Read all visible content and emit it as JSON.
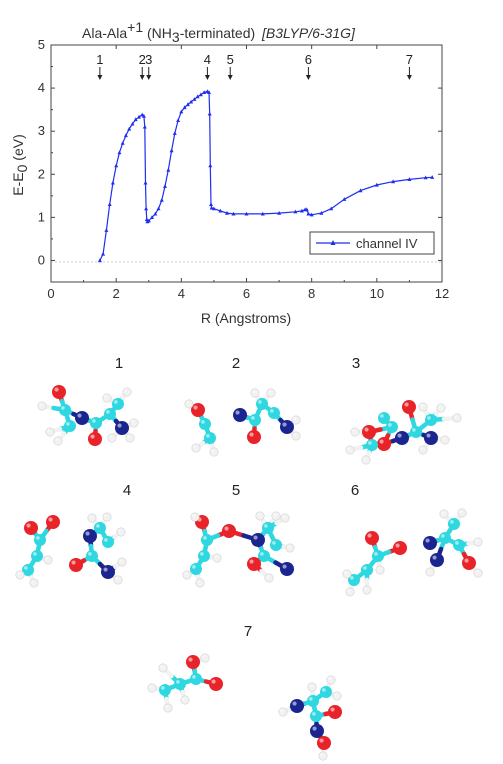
{
  "chart_data": {
    "type": "line",
    "title": "Ala-Ala+1 (NH3-terminated)",
    "title_parts": {
      "base": "Ala-Ala",
      "sup": "+1",
      "mid1": " (NH",
      "sub": "3",
      "mid2": "-terminated)",
      "method": "[B3LYP/6-31G]"
    },
    "xlabel": "R (Angstroms)",
    "ylabel": "E-E0 (eV)",
    "ylabel_parts": {
      "base": "E-E",
      "sub": "0",
      "unit": " (eV)"
    },
    "xlim": [
      0,
      12
    ],
    "ylim": [
      -0.5,
      5
    ],
    "xticks": [
      0,
      2,
      4,
      6,
      8,
      10,
      12
    ],
    "yticks": [
      0,
      1,
      2,
      3,
      4,
      5
    ],
    "legend": {
      "label": "channel IV",
      "placement": "bottom-right"
    },
    "series": [
      {
        "name": "channel IV",
        "color": "#1f2ff0",
        "x": [
          1.5,
          1.6,
          1.7,
          1.8,
          1.9,
          2.0,
          2.1,
          2.2,
          2.3,
          2.4,
          2.5,
          2.6,
          2.7,
          2.8,
          2.85,
          2.88,
          2.9,
          2.92,
          2.94,
          2.96,
          3.0,
          3.1,
          3.2,
          3.3,
          3.4,
          3.5,
          3.6,
          3.7,
          3.8,
          3.9,
          4.0,
          4.1,
          4.2,
          4.3,
          4.4,
          4.5,
          4.6,
          4.7,
          4.8,
          4.85,
          4.87,
          4.89,
          4.91,
          4.93,
          5.0,
          5.2,
          5.4,
          5.6,
          6.0,
          6.5,
          7.0,
          7.5,
          7.7,
          7.8,
          7.85,
          7.9,
          8.0,
          8.3,
          8.6,
          9.0,
          9.5,
          10.0,
          10.5,
          11.0,
          11.5,
          11.7
        ],
        "y": [
          0.0,
          0.15,
          0.7,
          1.3,
          1.8,
          2.2,
          2.5,
          2.72,
          2.9,
          3.05,
          3.17,
          3.27,
          3.33,
          3.38,
          3.35,
          3.1,
          1.8,
          1.2,
          0.95,
          0.9,
          0.92,
          1.0,
          1.08,
          1.2,
          1.4,
          1.72,
          2.1,
          2.55,
          2.95,
          3.25,
          3.45,
          3.55,
          3.62,
          3.68,
          3.74,
          3.8,
          3.85,
          3.9,
          3.92,
          3.9,
          3.4,
          2.2,
          1.3,
          1.22,
          1.2,
          1.15,
          1.1,
          1.08,
          1.08,
          1.08,
          1.1,
          1.13,
          1.15,
          1.18,
          1.18,
          1.08,
          1.06,
          1.1,
          1.2,
          1.42,
          1.62,
          1.75,
          1.83,
          1.88,
          1.92,
          1.93
        ]
      }
    ],
    "markers": [
      {
        "label": "1",
        "x": 1.5
      },
      {
        "label": "2",
        "x": 2.8
      },
      {
        "label": "3",
        "x": 3.0
      },
      {
        "label": "4",
        "x": 4.8
      },
      {
        "label": "5",
        "x": 5.5
      },
      {
        "label": "6",
        "x": 7.9
      },
      {
        "label": "7",
        "x": 11.0
      }
    ]
  },
  "structures": [
    {
      "label": "1"
    },
    {
      "label": "2"
    },
    {
      "label": "3"
    },
    {
      "label": "4"
    },
    {
      "label": "5"
    },
    {
      "label": "6"
    },
    {
      "label": "7"
    }
  ],
  "colors": {
    "carbon": "#2fd8e0",
    "oxygen": "#e8242a",
    "nitrogen": "#1a2590",
    "hydrogen": "#f2f2f2",
    "axis": "#444444",
    "series": "#1f2ff0"
  }
}
